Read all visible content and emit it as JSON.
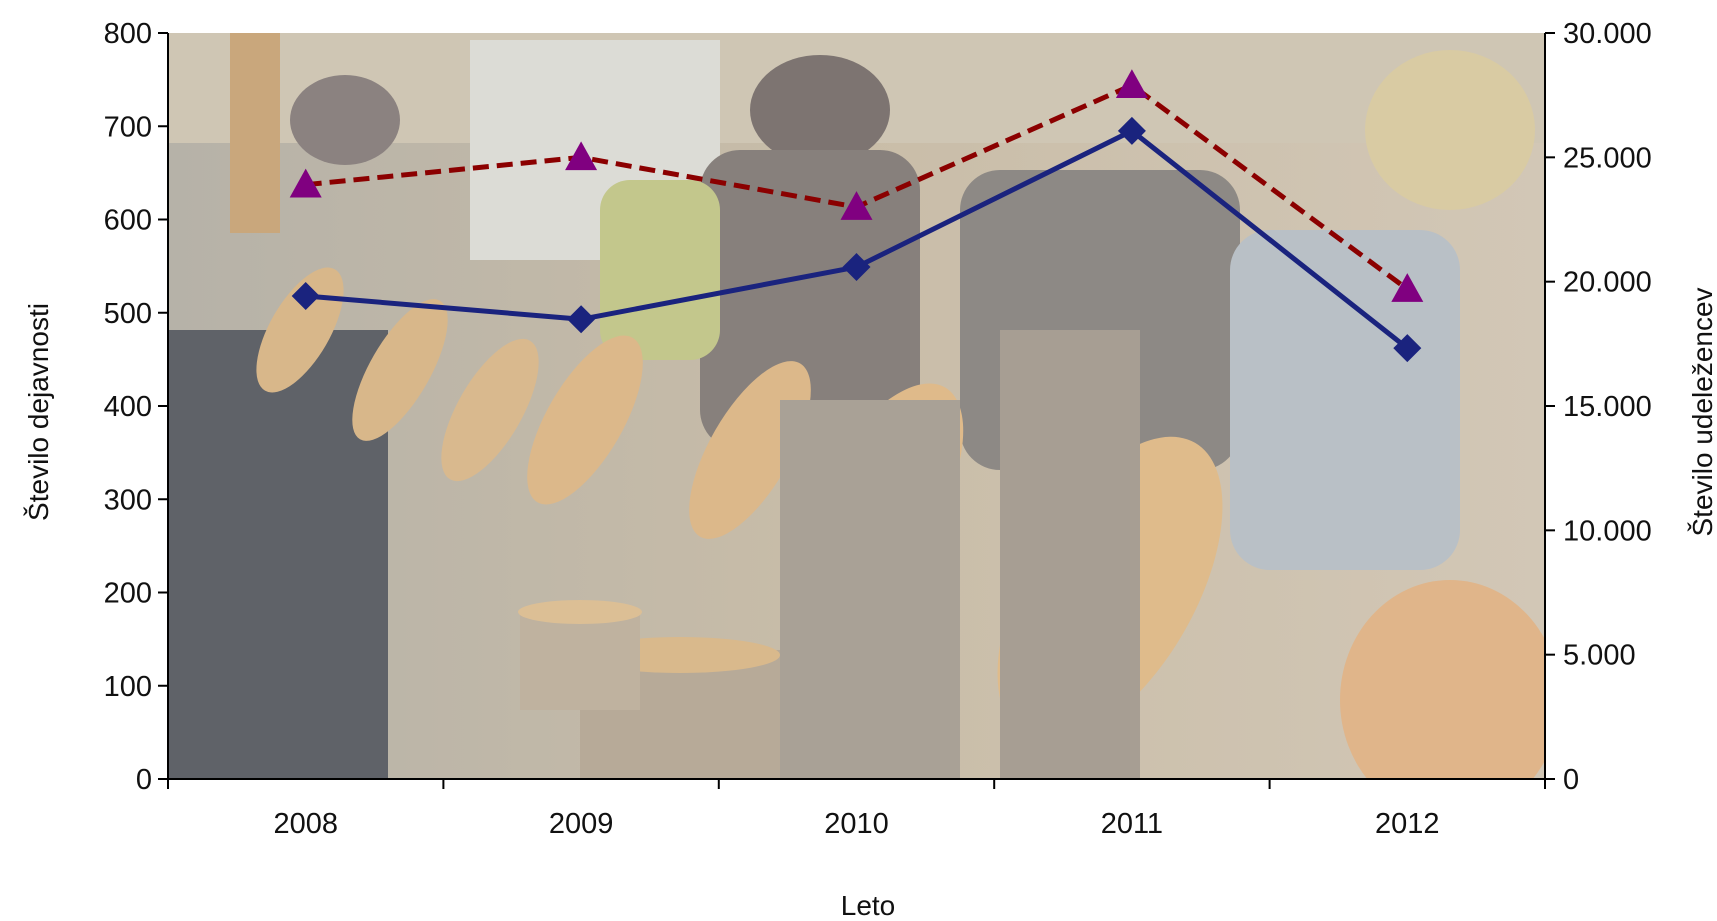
{
  "chart_data": {
    "type": "line",
    "title": "",
    "xlabel": "Leto",
    "ylabel": "Število dejavnosti",
    "y2label": "Število udeležencev",
    "categories": [
      "2008",
      "2009",
      "2010",
      "2011",
      "2012"
    ],
    "ylim": [
      0,
      800
    ],
    "y2lim": [
      0,
      30000
    ],
    "yticks": [
      "0",
      "100",
      "200",
      "300",
      "400",
      "500",
      "600",
      "700",
      "800"
    ],
    "y2ticks": [
      "0",
      "5.000",
      "10.000",
      "15.000",
      "20.000",
      "25.000",
      "30.000"
    ],
    "grid": false,
    "legend": "none",
    "series": [
      {
        "axis": "left",
        "values": [
          518,
          493,
          549,
          695,
          462
        ],
        "color": "#1a237e",
        "line_style": "solid",
        "marker": "diamond"
      },
      {
        "axis": "right",
        "values": [
          23900,
          25000,
          23000,
          27900,
          19700
        ],
        "color": "#8b0000",
        "line_style": "dashed",
        "marker": "triangle",
        "marker_color": "#800080"
      }
    ],
    "plot_background": "photograph of children looking at tree log cross-sections (faded)"
  }
}
